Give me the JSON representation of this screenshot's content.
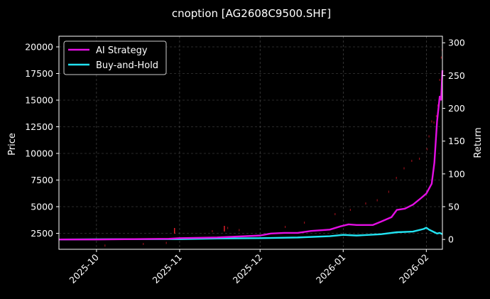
{
  "chart_data": {
    "type": "line",
    "title": "cnoption [AG2608C9500.SHF]",
    "ylabel_left": "Price",
    "ylabel_right": "Return",
    "x_ticks": [
      "2025-10",
      "2025-11",
      "2025-12",
      "2026-01",
      "2026-02"
    ],
    "y_left_ticks": [
      "2500",
      "5000",
      "7500",
      "10000",
      "12500",
      "15000",
      "17500",
      "20000"
    ],
    "y_right_ticks": [
      "0",
      "50",
      "100",
      "150",
      "200",
      "250",
      "300"
    ],
    "y_left_range": [
      1000,
      21000
    ],
    "y_right_range": [
      -15,
      310
    ],
    "x_range": [
      "2025-09-17",
      "2026-02-07"
    ],
    "grid": true,
    "legend_position": "top-left",
    "series": [
      {
        "name": "AI Strategy",
        "color": "#e30fe3",
        "axis": "right",
        "points": [
          [
            "2025-09-17",
            0
          ],
          [
            "2025-10-01",
            0
          ],
          [
            "2025-10-15",
            0.5
          ],
          [
            "2025-10-28",
            1
          ],
          [
            "2025-11-01",
            2
          ],
          [
            "2025-11-15",
            3
          ],
          [
            "2025-12-01",
            6
          ],
          [
            "2025-12-05",
            9
          ],
          [
            "2025-12-10",
            10
          ],
          [
            "2025-12-15",
            10
          ],
          [
            "2025-12-20",
            13
          ],
          [
            "2025-12-27",
            15
          ],
          [
            "2025-12-31",
            20
          ],
          [
            "2026-01-03",
            23
          ],
          [
            "2026-01-06",
            22
          ],
          [
            "2026-01-12",
            22
          ],
          [
            "2026-01-15",
            27
          ],
          [
            "2026-01-19",
            34
          ],
          [
            "2026-01-21",
            45
          ],
          [
            "2026-01-24",
            47
          ],
          [
            "2026-01-27",
            53
          ],
          [
            "2026-01-30",
            63
          ],
          [
            "2026-02-01",
            70
          ],
          [
            "2026-02-03",
            85
          ],
          [
            "2026-02-04",
            117
          ],
          [
            "2026-02-05",
            180
          ],
          [
            "2026-02-06",
            218
          ],
          [
            "2026-02-06.5",
            213
          ],
          [
            "2026-02-07",
            258
          ]
        ]
      },
      {
        "name": "Buy-and-Hold",
        "color": "#22e3f2",
        "axis": "right",
        "points": [
          [
            "2025-09-17",
            0
          ],
          [
            "2025-10-15",
            0.5
          ],
          [
            "2025-11-01",
            0.5
          ],
          [
            "2025-11-15",
            1.5
          ],
          [
            "2025-12-01",
            2
          ],
          [
            "2025-12-15",
            3
          ],
          [
            "2025-12-27",
            5
          ],
          [
            "2026-01-01",
            7
          ],
          [
            "2026-01-06",
            6
          ],
          [
            "2026-01-15",
            8
          ],
          [
            "2026-01-21",
            11
          ],
          [
            "2026-01-27",
            12
          ],
          [
            "2026-01-31",
            16
          ],
          [
            "2026-02-01",
            18
          ],
          [
            "2026-02-02",
            15
          ],
          [
            "2026-02-04",
            11
          ],
          [
            "2026-02-05",
            9
          ],
          [
            "2026-02-06",
            10
          ],
          [
            "2026-02-07",
            8
          ]
        ]
      }
    ]
  }
}
